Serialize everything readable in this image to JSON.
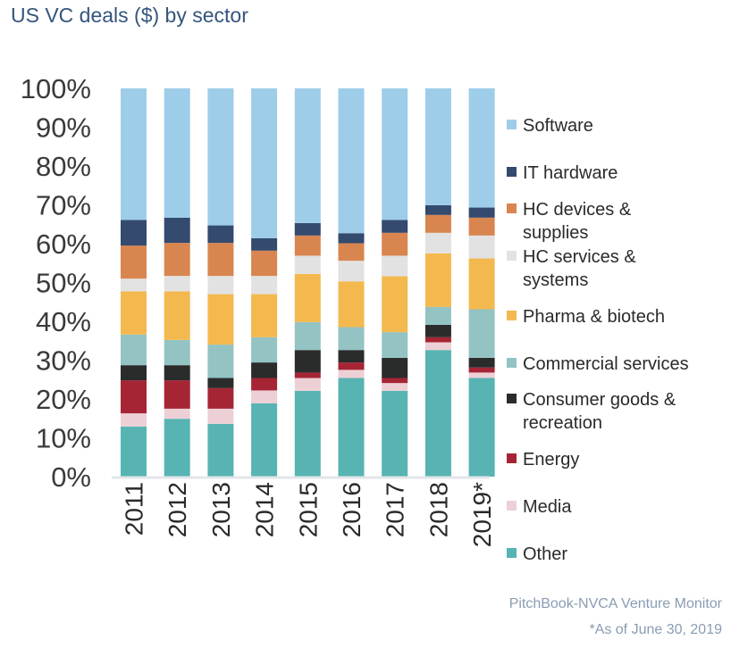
{
  "chart_data": {
    "type": "bar",
    "stacked": true,
    "title": "US VC deals ($) by sector",
    "xlabel": "",
    "ylabel": "",
    "ylim": [
      0,
      100
    ],
    "yticks": [
      "0%",
      "10%",
      "20%",
      "30%",
      "40%",
      "50%",
      "60%",
      "70%",
      "80%",
      "90%",
      "100%"
    ],
    "grid": false,
    "legend_position": "right",
    "categories": [
      "2011",
      "2012",
      "2013",
      "2014",
      "2015",
      "2016",
      "2017",
      "2018",
      "2019*"
    ],
    "series": [
      {
        "name": "Other",
        "color": "#57b4b3",
        "values": [
          12.9,
          14.9,
          13.6,
          18.9,
          22.1,
          25.4,
          22.1,
          32.6,
          25.4
        ]
      },
      {
        "name": "Media",
        "color": "#edd0d6",
        "values": [
          3.4,
          2.6,
          3.9,
          3.3,
          3.3,
          2.1,
          2.0,
          2.0,
          1.4
        ]
      },
      {
        "name": "Energy",
        "color": "#a52535",
        "values": [
          8.5,
          7.3,
          5.3,
          3.2,
          1.4,
          1.9,
          1.3,
          1.3,
          1.3
        ]
      },
      {
        "name": "Consumer goods & recreation",
        "color": "#2a2b2b",
        "values": [
          3.9,
          3.9,
          2.6,
          4.0,
          5.8,
          3.2,
          5.2,
          3.2,
          2.5
        ]
      },
      {
        "name": "Commercial services",
        "color": "#93c3c3",
        "values": [
          7.9,
          6.5,
          8.6,
          6.5,
          7.2,
          5.9,
          6.6,
          4.6,
          12.5
        ]
      },
      {
        "name": "Pharma & biotech",
        "color": "#f3b94f",
        "values": [
          11.1,
          12.5,
          13.0,
          11.1,
          12.4,
          11.8,
          14.4,
          13.8,
          13.1
        ]
      },
      {
        "name": "HC services & systems",
        "color": "#e2e2e2",
        "values": [
          3.3,
          4.0,
          4.7,
          4.7,
          4.7,
          5.3,
          5.3,
          5.3,
          5.9
        ]
      },
      {
        "name": "HC devices & supplies",
        "color": "#d9854f",
        "values": [
          8.5,
          8.5,
          8.5,
          6.5,
          5.2,
          4.5,
          5.9,
          4.6,
          4.6
        ]
      },
      {
        "name": "IT hardware",
        "color": "#344a6e",
        "values": [
          6.6,
          6.5,
          4.5,
          3.2,
          3.2,
          2.6,
          3.3,
          2.5,
          2.6
        ]
      },
      {
        "name": "Software",
        "color": "#9ecde9",
        "values": [
          33.9,
          33.3,
          35.3,
          38.6,
          34.7,
          37.3,
          33.9,
          30.1,
          30.7
        ]
      }
    ],
    "legend": [
      {
        "lines": [
          "Software"
        ],
        "series": 9
      },
      {
        "lines": [
          "IT hardware"
        ],
        "series": 8
      },
      {
        "lines": [
          "HC devices &",
          "supplies"
        ],
        "series": 7
      },
      {
        "lines": [
          "HC services &",
          "systems"
        ],
        "series": 6
      },
      {
        "lines": [
          "Pharma & biotech"
        ],
        "series": 5
      },
      {
        "lines": [
          "Commercial services"
        ],
        "series": 4
      },
      {
        "lines": [
          "Consumer goods &",
          "recreation"
        ],
        "series": 3
      },
      {
        "lines": [
          "Energy"
        ],
        "series": 2
      },
      {
        "lines": [
          "Media"
        ],
        "series": 1
      },
      {
        "lines": [
          "Other"
        ],
        "series": 0
      }
    ]
  },
  "footer": {
    "source": "PitchBook-NVCA Venture Monitor",
    "note": "*As of June 30, 2019"
  }
}
